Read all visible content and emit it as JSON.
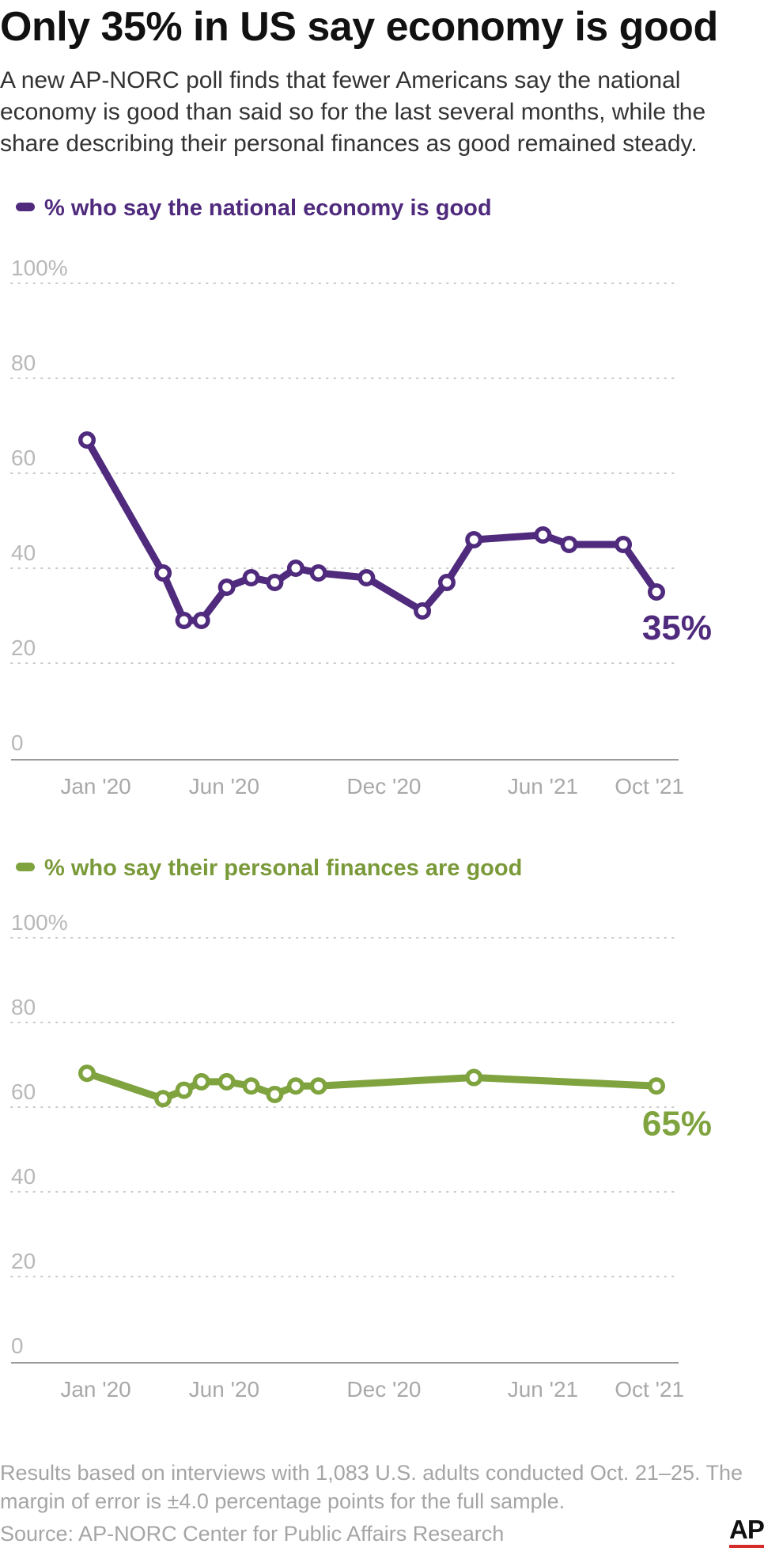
{
  "title": "Only 35% in US say economy is good",
  "subtitle": "A new AP-NORC poll finds that fewer Americans say the national economy is good than said so for the last several months, while the share describing their personal finances as good remained steady.",
  "footnote": "Results based on interviews with 1,083 U.S. adults conducted Oct. 21–25. The margin of error is ±4.0 percentage points for the full sample.",
  "source": "Source: AP-NORC Center for Public Affairs Research",
  "logo": "AP",
  "colors": {
    "economy": "#4f2a7d",
    "finances": "#7fa33e",
    "grid": "#c9c9c9",
    "axis": "#9a9a9a"
  },
  "chart_data": [
    {
      "type": "line",
      "legend": "% who say the national economy is good",
      "end_label": "35%",
      "y_ticks": [
        "100%",
        "80",
        "60",
        "40",
        "20",
        "0"
      ],
      "x_ticks": [
        "Jan '20",
        "Jun '20",
        "Dec '20",
        "Jun '21",
        "Oct '21"
      ],
      "ylim": [
        0,
        100
      ],
      "grid": true,
      "series": [
        {
          "x": [
            "2020-01-10",
            "2020-04-06",
            "2020-04-30",
            "2020-05-20",
            "2020-06-18",
            "2020-07-16",
            "2020-08-12",
            "2020-09-05",
            "2020-10-01",
            "2020-11-25",
            "2021-01-28",
            "2021-02-25",
            "2021-03-28",
            "2021-06-15",
            "2021-07-15",
            "2021-09-15",
            "2021-10-23"
          ],
          "values": [
            67,
            39,
            29,
            29,
            36,
            38,
            37,
            40,
            39,
            38,
            31,
            37,
            46,
            47,
            45,
            45,
            35
          ]
        }
      ]
    },
    {
      "type": "line",
      "legend": "% who say their personal finances are good",
      "end_label": "65%",
      "y_ticks": [
        "100%",
        "80",
        "60",
        "40",
        "20",
        "0"
      ],
      "x_ticks": [
        "Jan '20",
        "Jun '20",
        "Dec '20",
        "Jun '21",
        "Oct '21"
      ],
      "ylim": [
        0,
        100
      ],
      "grid": true,
      "series": [
        {
          "x": [
            "2020-01-10",
            "2020-04-06",
            "2020-04-30",
            "2020-05-20",
            "2020-06-18",
            "2020-07-16",
            "2020-08-12",
            "2020-09-05",
            "2020-10-01",
            "2021-03-28",
            "2021-10-23"
          ],
          "values": [
            68,
            62,
            64,
            66,
            66,
            65,
            63,
            65,
            65,
            67,
            65
          ]
        }
      ]
    }
  ]
}
